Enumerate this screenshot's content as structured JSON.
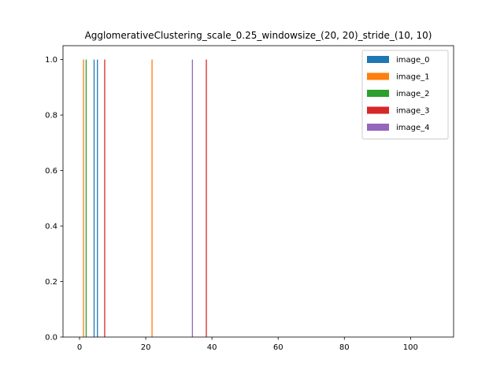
{
  "chart_data": {
    "type": "bar",
    "title": "AgglomerativeClustering_scale_0.25_windowsize_(20, 20)_stride_(10, 10)",
    "xlabel": "",
    "ylabel": "",
    "xlim": [
      -5,
      113
    ],
    "ylim": [
      0,
      1.05
    ],
    "xticks": [
      0,
      20,
      40,
      60,
      80,
      100
    ],
    "yticks": [
      0.0,
      0.2,
      0.4,
      0.6,
      0.8,
      1.0
    ],
    "xtick_labels": [
      "0",
      "20",
      "40",
      "60",
      "80",
      "100"
    ],
    "ytick_labels": [
      "0.0",
      "0.2",
      "0.4",
      "0.6",
      "0.8",
      "1.0"
    ],
    "grid": false,
    "legend_position": "top-right",
    "series": [
      {
        "name": "image_0",
        "color": "#1f77b4",
        "x": [
          4.4,
          5.4
        ],
        "values": [
          1,
          1
        ]
      },
      {
        "name": "image_1",
        "color": "#ff7f0e",
        "x": [
          1.2,
          21.9
        ],
        "values": [
          1,
          1
        ]
      },
      {
        "name": "image_2",
        "color": "#2ca02c",
        "x": [
          2.0
        ],
        "values": [
          1
        ]
      },
      {
        "name": "image_3",
        "color": "#d62728",
        "x": [
          7.6,
          38.3
        ],
        "values": [
          1,
          1
        ]
      },
      {
        "name": "image_4",
        "color": "#9467bd",
        "x": [
          34.1
        ],
        "values": [
          1
        ]
      }
    ]
  }
}
